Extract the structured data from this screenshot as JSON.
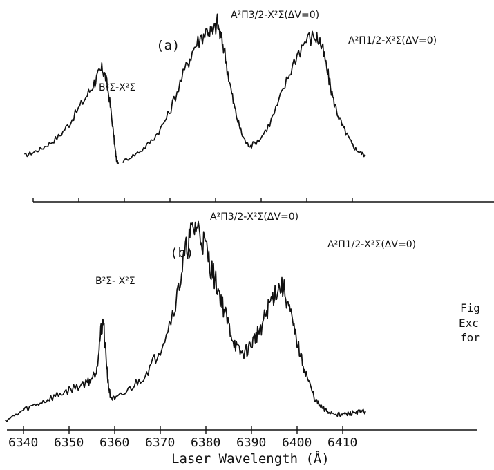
{
  "chart_data": [
    {
      "type": "line",
      "panel_label": "(a)",
      "annotations": [
        "B²Σ-X²Σ",
        "A²Π3/2-X²Σ(ΔV=0)",
        "A²Π1/2-X²Σ(ΔV=0)"
      ],
      "segments": [
        [
          [
            6340.2,
            0.08
          ],
          [
            6342,
            0.1
          ],
          [
            6344,
            0.13
          ],
          [
            6346,
            0.17
          ],
          [
            6348,
            0.22
          ],
          [
            6350,
            0.3
          ],
          [
            6352,
            0.4
          ],
          [
            6354,
            0.5
          ],
          [
            6355.5,
            0.58
          ],
          [
            6356.5,
            0.64
          ],
          [
            6357.3,
            0.68
          ],
          [
            6358,
            0.62
          ],
          [
            6358.8,
            0.48
          ],
          [
            6359.5,
            0.3
          ],
          [
            6360,
            0.15
          ],
          [
            6360.4,
            0.05
          ],
          [
            6360.8,
            0.02
          ]
        ],
        [
          [
            6361.8,
            0.04
          ],
          [
            6364,
            0.08
          ],
          [
            6366,
            0.12
          ],
          [
            6368,
            0.18
          ],
          [
            6370,
            0.26
          ],
          [
            6372,
            0.38
          ],
          [
            6374,
            0.55
          ],
          [
            6376,
            0.72
          ],
          [
            6377.5,
            0.83
          ],
          [
            6379,
            0.9
          ],
          [
            6380.5,
            0.95
          ],
          [
            6381.5,
            0.92
          ],
          [
            6382.5,
            1.0
          ],
          [
            6383.2,
            0.9
          ],
          [
            6384,
            0.82
          ],
          [
            6385,
            0.62
          ],
          [
            6386,
            0.45
          ],
          [
            6387,
            0.32
          ],
          [
            6388,
            0.22
          ],
          [
            6389,
            0.16
          ],
          [
            6390,
            0.15
          ],
          [
            6392,
            0.2
          ],
          [
            6394,
            0.3
          ],
          [
            6396,
            0.45
          ],
          [
            6398,
            0.62
          ],
          [
            6400,
            0.78
          ],
          [
            6402,
            0.88
          ],
          [
            6404,
            0.9
          ],
          [
            6405,
            0.87
          ],
          [
            6406,
            0.76
          ],
          [
            6407,
            0.6
          ],
          [
            6408,
            0.46
          ],
          [
            6409,
            0.36
          ],
          [
            6410,
            0.28
          ],
          [
            6411,
            0.22
          ],
          [
            6412,
            0.16
          ],
          [
            6413,
            0.12
          ],
          [
            6414,
            0.1
          ],
          [
            6415,
            0.08
          ]
        ]
      ]
    },
    {
      "type": "line",
      "panel_label": "(b)",
      "annotations": [
        "B²Σ- X²Σ",
        "A²Π3/2-X²Σ(ΔV=0)",
        "A²Π1/2-X²Σ(ΔV=0)"
      ],
      "x": [
        6336,
        6338,
        6340,
        6342,
        6344,
        6346,
        6348,
        6350,
        6352,
        6354,
        6355,
        6356,
        6356.5,
        6357,
        6357.5,
        6358,
        6358.5,
        6359,
        6360,
        6362,
        6364,
        6366,
        6368,
        6370,
        6372,
        6374,
        6375,
        6376,
        6377,
        6378,
        6379,
        6380,
        6381,
        6382,
        6383,
        6384,
        6385,
        6386,
        6387,
        6388,
        6389,
        6390,
        6391,
        6392,
        6393,
        6394,
        6395,
        6396,
        6397,
        6398,
        6399,
        6400,
        6401,
        6402,
        6403,
        6404,
        6405,
        6406,
        6407,
        6408,
        6409,
        6410,
        6411,
        6412,
        6413,
        6414,
        6415
      ],
      "values": [
        0.0,
        0.02,
        0.05,
        0.07,
        0.09,
        0.11,
        0.13,
        0.15,
        0.17,
        0.19,
        0.21,
        0.25,
        0.35,
        0.45,
        0.5,
        0.35,
        0.2,
        0.12,
        0.1,
        0.13,
        0.17,
        0.21,
        0.27,
        0.36,
        0.48,
        0.65,
        0.78,
        0.88,
        0.94,
        0.97,
        0.91,
        0.86,
        0.77,
        0.7,
        0.63,
        0.55,
        0.47,
        0.4,
        0.35,
        0.33,
        0.35,
        0.38,
        0.42,
        0.46,
        0.52,
        0.58,
        0.63,
        0.66,
        0.66,
        0.58,
        0.48,
        0.39,
        0.3,
        0.23,
        0.16,
        0.1,
        0.07,
        0.05,
        0.04,
        0.035,
        0.03,
        0.03,
        0.03,
        0.035,
        0.04,
        0.04,
        0.045
      ],
      "xticks": [
        6340,
        6350,
        6360,
        6370,
        6380,
        6390,
        6400,
        6410
      ],
      "xtick_labels": [
        "6340",
        "6350",
        "6360",
        "6370",
        "6380",
        "6390",
        "6400",
        "6410"
      ],
      "xlabel": "Laser Wavelength (Å)",
      "xlim": [
        6335,
        6420
      ],
      "ylim": [
        0,
        1
      ]
    }
  ],
  "caption": [
    "Fig",
    "Exc",
    "for"
  ]
}
